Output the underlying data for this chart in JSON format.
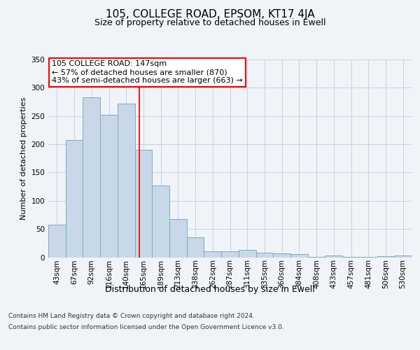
{
  "title": "105, COLLEGE ROAD, EPSOM, KT17 4JA",
  "subtitle": "Size of property relative to detached houses in Ewell",
  "xlabel": "Distribution of detached houses by size in Ewell",
  "ylabel": "Number of detached properties",
  "bar_color": "#c8d8e8",
  "bar_edge_color": "#7aaac8",
  "background_color": "#f0f4f8",
  "plot_bg_color": "#f0f4f8",
  "categories": [
    "43sqm",
    "67sqm",
    "92sqm",
    "116sqm",
    "140sqm",
    "165sqm",
    "189sqm",
    "213sqm",
    "238sqm",
    "262sqm",
    "287sqm",
    "311sqm",
    "335sqm",
    "360sqm",
    "384sqm",
    "408sqm",
    "433sqm",
    "457sqm",
    "481sqm",
    "506sqm",
    "530sqm"
  ],
  "values": [
    58,
    208,
    283,
    252,
    272,
    190,
    127,
    68,
    35,
    10,
    10,
    13,
    8,
    7,
    5,
    1,
    3,
    1,
    1,
    2,
    3
  ],
  "ylim": [
    0,
    350
  ],
  "yticks": [
    0,
    50,
    100,
    150,
    200,
    250,
    300,
    350
  ],
  "red_line_x": 4.77,
  "annotation_text": "105 COLLEGE ROAD: 147sqm\n← 57% of detached houses are smaller (870)\n43% of semi-detached houses are larger (663) →",
  "annotation_box_color": "white",
  "annotation_box_edge_color": "red",
  "footer_line1": "Contains HM Land Registry data © Crown copyright and database right 2024.",
  "footer_line2": "Contains public sector information licensed under the Open Government Licence v3.0.",
  "grid_color": "#c0cce0",
  "title_fontsize": 11,
  "subtitle_fontsize": 9,
  "ylabel_fontsize": 8,
  "xlabel_fontsize": 9,
  "tick_fontsize": 7.5,
  "annotation_fontsize": 8,
  "footer_fontsize": 6.5
}
